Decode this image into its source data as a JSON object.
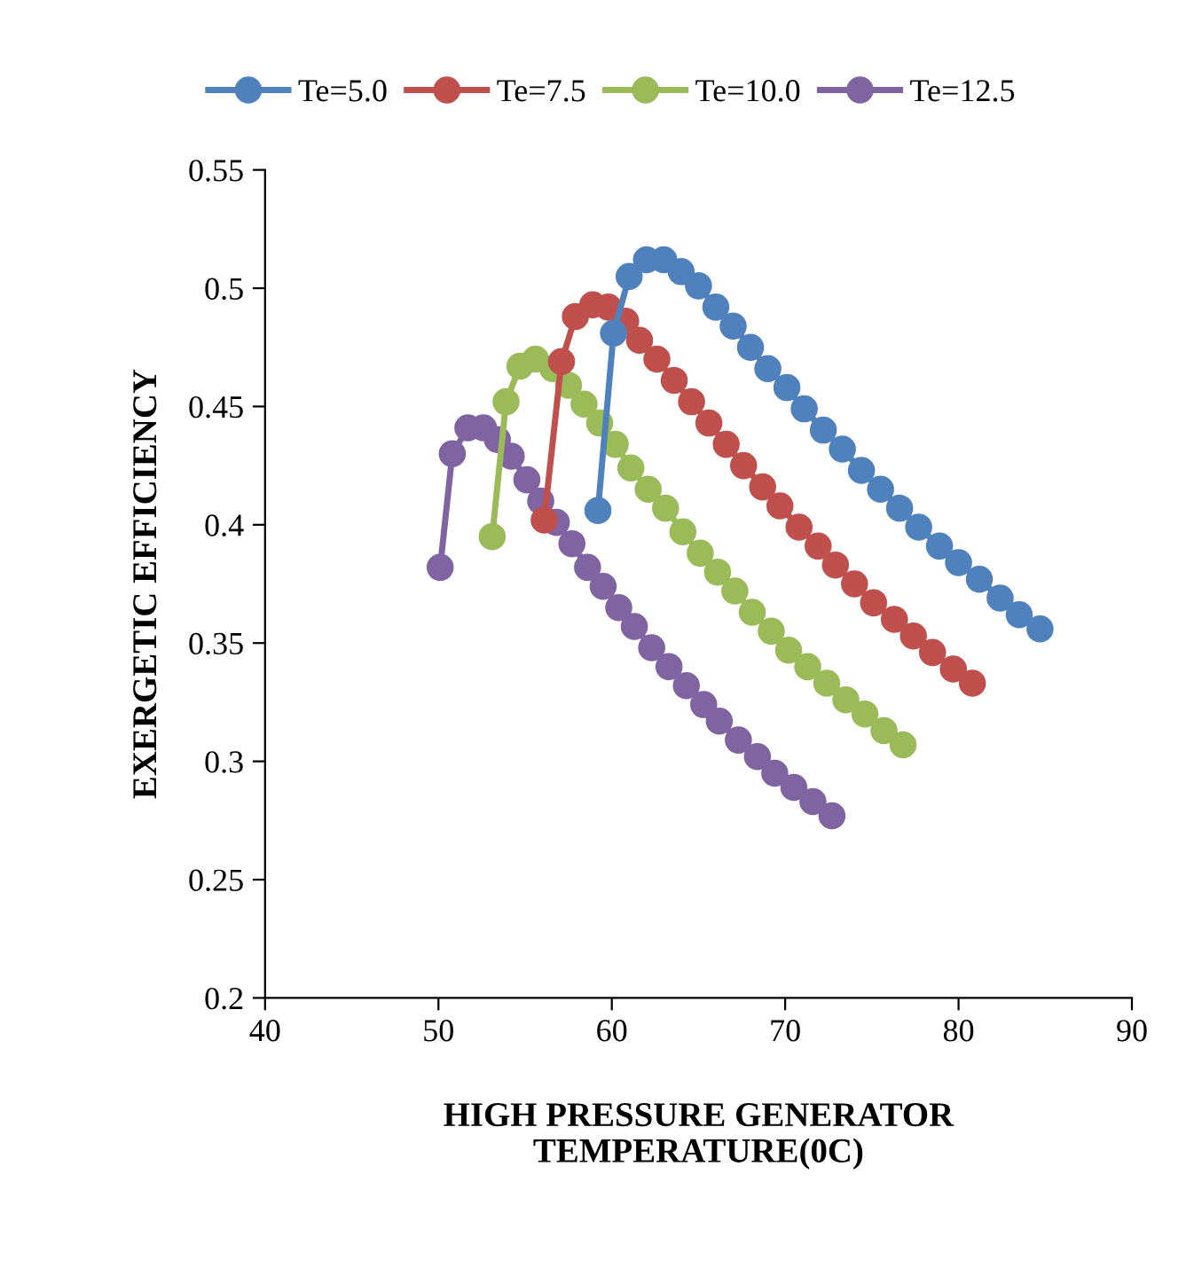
{
  "chart_data": {
    "type": "line",
    "xlabel": "HIGH PRESSURE GENERATOR\nTEMPERATURE(0C)",
    "ylabel": "EXERGETIC EFFICIENCY",
    "xlim": [
      40,
      90
    ],
    "xticks": [
      40,
      50,
      60,
      70,
      80,
      90
    ],
    "ylim": [
      0.2,
      0.55
    ],
    "yticks": [
      0.2,
      0.25,
      0.3,
      0.35,
      0.4,
      0.45,
      0.5,
      0.55
    ],
    "grid": false,
    "legend": "top",
    "marker": "circle",
    "line_style": "solid",
    "series": [
      {
        "name": "Te=5.0",
        "color": "#4f81bd",
        "x": [
          59.2,
          60.1,
          61.0,
          62.0,
          63.0,
          64.0,
          65.0,
          66.0,
          67.0,
          68.0,
          69.0,
          70.1,
          71.1,
          72.2,
          73.3,
          74.4,
          75.5,
          76.6,
          77.7,
          78.9,
          80.0,
          81.2,
          82.4,
          83.5,
          84.7
        ],
        "values": [
          0.406,
          0.481,
          0.505,
          0.512,
          0.512,
          0.507,
          0.501,
          0.492,
          0.484,
          0.475,
          0.466,
          0.458,
          0.449,
          0.44,
          0.432,
          0.423,
          0.415,
          0.407,
          0.399,
          0.391,
          0.384,
          0.377,
          0.369,
          0.362,
          0.356
        ]
      },
      {
        "name": "Te=7.5",
        "color": "#c0504d",
        "x": [
          56.1,
          57.1,
          57.9,
          58.9,
          59.8,
          60.8,
          61.6,
          62.6,
          63.6,
          64.6,
          65.6,
          66.6,
          67.6,
          68.7,
          69.7,
          70.8,
          71.9,
          72.9,
          74.0,
          75.1,
          76.3,
          77.4,
          78.5,
          79.7,
          80.8
        ],
        "values": [
          0.402,
          0.469,
          0.488,
          0.493,
          0.492,
          0.486,
          0.478,
          0.47,
          0.461,
          0.452,
          0.443,
          0.434,
          0.425,
          0.416,
          0.408,
          0.399,
          0.391,
          0.383,
          0.375,
          0.367,
          0.36,
          0.353,
          0.346,
          0.339,
          0.333
        ]
      },
      {
        "name": "Te=10.0",
        "color": "#9bbb59",
        "x": [
          53.1,
          53.9,
          54.7,
          55.6,
          56.6,
          57.5,
          58.4,
          59.3,
          60.2,
          61.1,
          62.1,
          63.1,
          64.1,
          65.1,
          66.1,
          67.1,
          68.1,
          69.2,
          70.2,
          71.3,
          72.4,
          73.5,
          74.6,
          75.7,
          76.8
        ],
        "values": [
          0.395,
          0.452,
          0.467,
          0.47,
          0.466,
          0.459,
          0.451,
          0.443,
          0.434,
          0.424,
          0.415,
          0.407,
          0.397,
          0.388,
          0.38,
          0.372,
          0.363,
          0.355,
          0.347,
          0.34,
          0.333,
          0.326,
          0.32,
          0.313,
          0.307
        ]
      },
      {
        "name": "Te=12.5",
        "color": "#8064a2",
        "x": [
          50.1,
          50.8,
          51.7,
          52.6,
          53.4,
          54.2,
          55.1,
          55.9,
          56.8,
          57.7,
          58.6,
          59.5,
          60.4,
          61.3,
          62.3,
          63.3,
          64.3,
          65.3,
          66.2,
          67.3,
          68.4,
          69.4,
          70.5,
          71.6,
          72.7
        ],
        "values": [
          0.382,
          0.43,
          0.441,
          0.441,
          0.436,
          0.429,
          0.419,
          0.41,
          0.401,
          0.392,
          0.382,
          0.374,
          0.365,
          0.357,
          0.348,
          0.34,
          0.332,
          0.324,
          0.317,
          0.309,
          0.302,
          0.295,
          0.289,
          0.283,
          0.277
        ]
      }
    ]
  }
}
